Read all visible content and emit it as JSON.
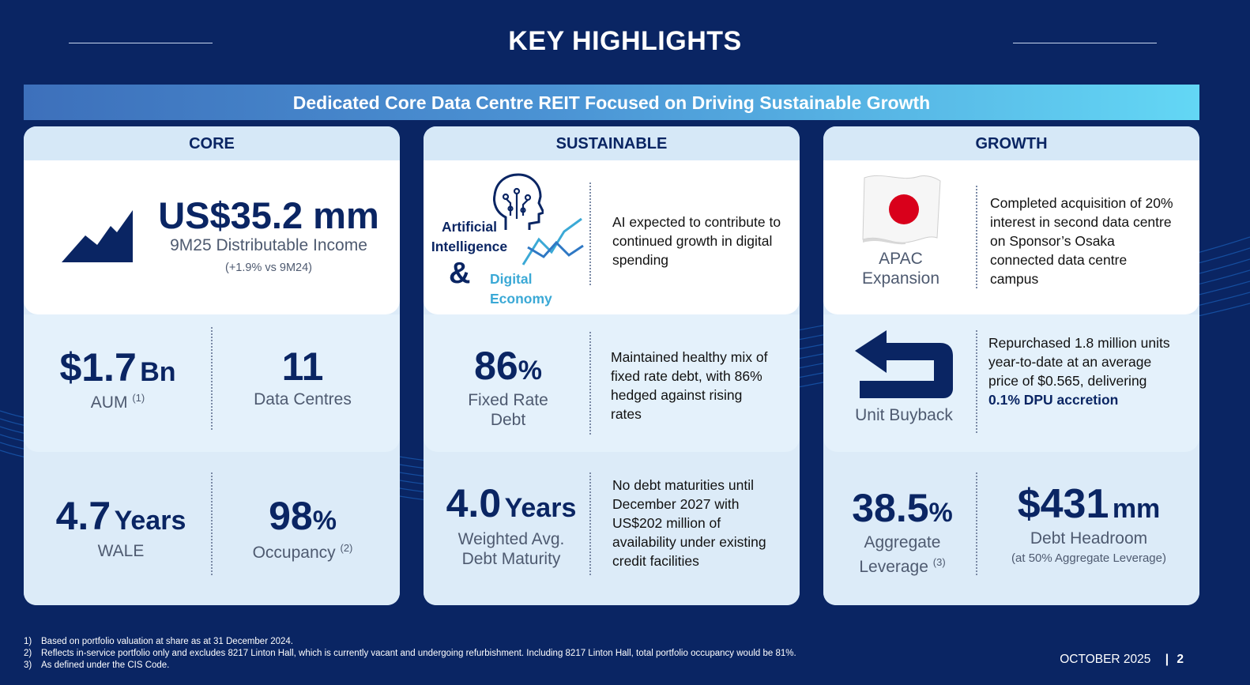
{
  "title": "KEY HIGHLIGHTS",
  "banner": "Dedicated Core Data Centre REIT Focused on Driving Sustainable Growth",
  "core": {
    "header": "CORE",
    "income_value": "US$35.2 mm",
    "income_label": "9M25 Distributable Income",
    "income_change": "(+1.9% vs 9M24)",
    "aum_value": "$1.7",
    "aum_unit": "Bn",
    "aum_label": "AUM",
    "aum_note": "(1)",
    "dc_value": "11",
    "dc_label": "Data Centres",
    "wale_value": "4.7",
    "wale_unit": "Years",
    "wale_label": "WALE",
    "occ_value": "98",
    "occ_unit": "%",
    "occ_label": "Occupancy",
    "occ_note": "(2)"
  },
  "sustainable": {
    "header": "SUSTAINABLE",
    "ai_line1": "Artificial",
    "ai_line2": "Intelligence",
    "amp": "&",
    "de_line1": "Digital",
    "de_line2": "Economy",
    "ai_desc": "AI expected to contribute to continued growth in digital spending",
    "fixed_value": "86",
    "fixed_unit": "%",
    "fixed_label1": "Fixed Rate",
    "fixed_label2": "Debt",
    "fixed_desc": "Maintained healthy mix of fixed rate debt, with 86% hedged against rising rates",
    "maturity_value": "4.0",
    "maturity_unit": "Years",
    "maturity_label1": "Weighted Avg.",
    "maturity_label2": "Debt Maturity",
    "maturity_desc": "No debt maturities until December 2027 with US$202 million of availability under existing credit facilities"
  },
  "growth": {
    "header": "GROWTH",
    "apac_label1": "APAC",
    "apac_label2": "Expansion",
    "apac_desc": "Completed acquisition of 20% interest in second data centre on Sponsor’s Osaka connected data centre campus",
    "buyback_label": "Unit Buyback",
    "buyback_desc": "Repurchased 1.8 million units year-to-date at an average price of $0.565, delivering",
    "buyback_highlight": "0.1% DPU accretion",
    "leverage_value": "38.5",
    "leverage_unit": "%",
    "leverage_label1": "Aggregate",
    "leverage_label2": "Leverage",
    "leverage_note": "(3)",
    "headroom_value": "$431",
    "headroom_unit": "mm",
    "headroom_label": "Debt Headroom",
    "headroom_sub": "(at 50% Aggregate Leverage)"
  },
  "footnotes": [
    {
      "num": "1)",
      "text": "Based on portfolio valuation at share as at 31 December 2024."
    },
    {
      "num": "2)",
      "text": "Reflects in-service portfolio only and excludes 8217 Linton Hall, which is currently vacant and undergoing refurbishment. Including 8217 Linton Hall, total portfolio occupancy would be 81%."
    },
    {
      "num": "3)",
      "text": "As defined under the CIS Code."
    }
  ],
  "footer": {
    "date": "OCTOBER 2025",
    "separator": "|",
    "page": "2"
  },
  "colors": {
    "navy": "#0a2563",
    "accent_cyan": "#3ba9d6",
    "japan_red": "#d9001b"
  },
  "icons": [
    "growth-chart-icon",
    "ai-head-icon",
    "trend-lines-icon",
    "japan-flag-icon",
    "buyback-arrow-icon"
  ]
}
